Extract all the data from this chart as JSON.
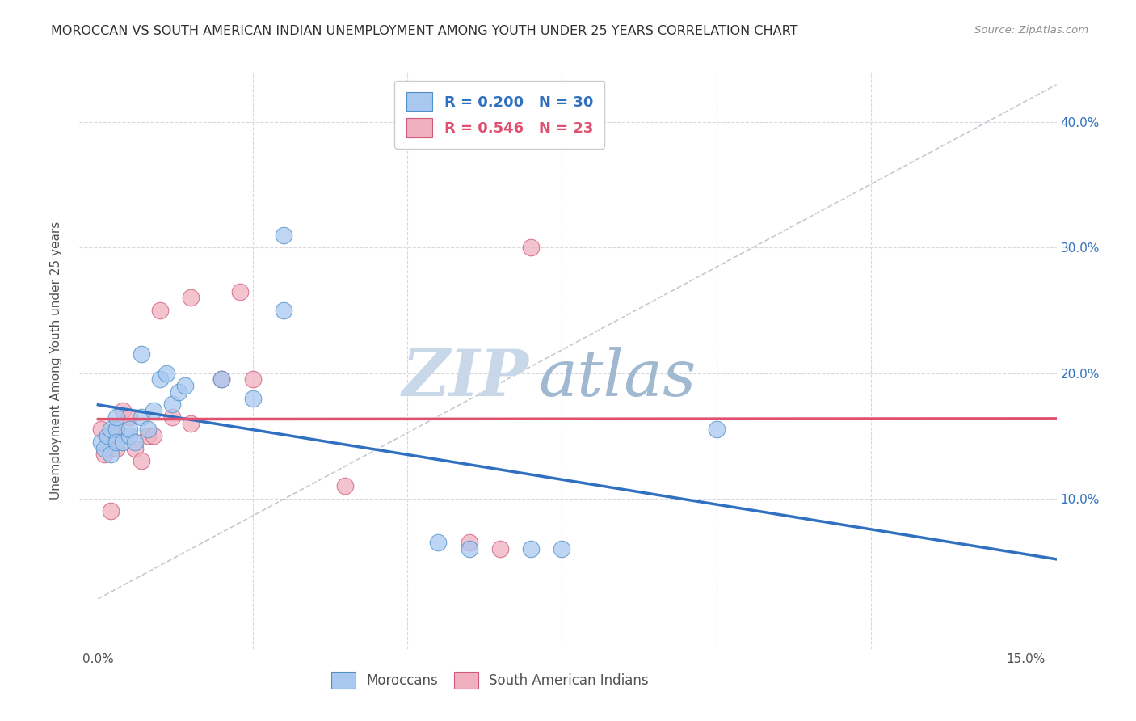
{
  "title": "MOROCCAN VS SOUTH AMERICAN INDIAN UNEMPLOYMENT AMONG YOUTH UNDER 25 YEARS CORRELATION CHART",
  "source": "Source: ZipAtlas.com",
  "ylabel_left": "Unemployment Among Youth under 25 years",
  "watermark_zip": "ZIP",
  "watermark_atlas": "atlas",
  "moroccan_color": "#a8c8f0",
  "moroccan_edge": "#5090c8",
  "sai_color": "#f0b0c0",
  "sai_edge": "#d05878",
  "trend_moroccan_color": "#3070c0",
  "trend_sai_color": "#e05070",
  "diagonal_color": "#c8c8d0",
  "background_color": "#ffffff",
  "grid_color": "#d8d8e0",
  "title_color": "#303030",
  "source_color": "#909090",
  "watermark_zip_color": "#c8d8e8",
  "watermark_atlas_color": "#a0b8d0",
  "ylim": [
    -0.02,
    0.44
  ],
  "xlim": [
    -0.003,
    0.155
  ],
  "moroccan_x": [
    0.0005,
    0.001,
    0.0015,
    0.002,
    0.002,
    0.003,
    0.003,
    0.003,
    0.004,
    0.005,
    0.005,
    0.006,
    0.007,
    0.007,
    0.008,
    0.009,
    0.01,
    0.011,
    0.012,
    0.013,
    0.014,
    0.02,
    0.025,
    0.03,
    0.055,
    0.06,
    0.07,
    0.075,
    0.1,
    0.03
  ],
  "moroccan_y": [
    0.145,
    0.14,
    0.15,
    0.135,
    0.155,
    0.155,
    0.145,
    0.165,
    0.145,
    0.15,
    0.155,
    0.145,
    0.215,
    0.165,
    0.155,
    0.17,
    0.195,
    0.2,
    0.175,
    0.185,
    0.19,
    0.195,
    0.18,
    0.25,
    0.065,
    0.06,
    0.06,
    0.06,
    0.155,
    0.31
  ],
  "sai_x": [
    0.0005,
    0.001,
    0.002,
    0.002,
    0.003,
    0.003,
    0.004,
    0.005,
    0.006,
    0.007,
    0.008,
    0.009,
    0.01,
    0.012,
    0.015,
    0.015,
    0.02,
    0.023,
    0.025,
    0.04,
    0.06,
    0.065,
    0.07
  ],
  "sai_y": [
    0.155,
    0.135,
    0.15,
    0.09,
    0.14,
    0.155,
    0.17,
    0.165,
    0.14,
    0.13,
    0.15,
    0.15,
    0.25,
    0.165,
    0.26,
    0.16,
    0.195,
    0.265,
    0.195,
    0.11,
    0.065,
    0.06,
    0.3
  ],
  "r_moroccan": "0.200",
  "n_moroccan": "30",
  "r_sai": "0.546",
  "n_sai": "23"
}
